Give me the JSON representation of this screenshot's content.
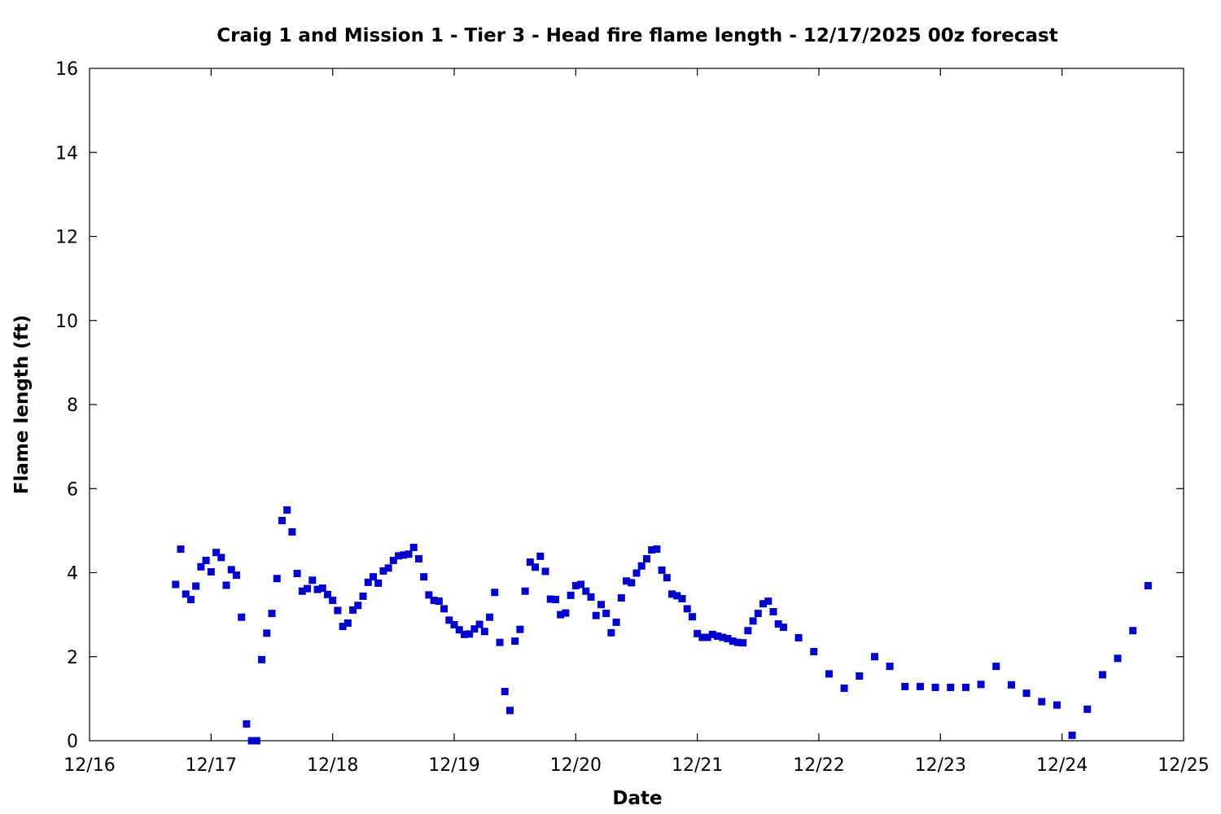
{
  "chart_data": {
    "type": "scatter",
    "title": "Craig 1 and Mission 1 - Tier 3 - Head fire flame length - 12/17/2025 00z forecast",
    "xlabel": "Date",
    "ylabel": "Flame length (ft)",
    "x_ticks": [
      "12/16",
      "12/17",
      "12/18",
      "12/19",
      "12/20",
      "12/21",
      "12/22",
      "12/23",
      "12/24",
      "12/25"
    ],
    "y_ticks": [
      "0",
      "2",
      "4",
      "6",
      "8",
      "10",
      "12",
      "14",
      "16"
    ],
    "xlim": [
      "12/16 00:00",
      "12/25 00:00"
    ],
    "ylim": [
      0,
      16
    ],
    "grid": false,
    "marker_color": "#0000cc",
    "series": [
      {
        "x": [
          "12/16 17:00",
          "12/16 18:00",
          "12/16 19:00",
          "12/16 20:00",
          "12/16 21:00",
          "12/16 22:00",
          "12/16 23:00",
          "12/17 00:00",
          "12/17 01:00",
          "12/17 02:00",
          "12/17 03:00",
          "12/17 04:00",
          "12/17 05:00",
          "12/17 06:00",
          "12/17 07:00",
          "12/17 08:00",
          "12/17 09:00",
          "12/17 10:00",
          "12/17 11:00",
          "12/17 12:00",
          "12/17 13:00",
          "12/17 14:00",
          "12/17 15:00",
          "12/17 16:00",
          "12/17 17:00",
          "12/17 18:00",
          "12/17 19:00",
          "12/17 20:00",
          "12/17 21:00",
          "12/17 22:00",
          "12/17 23:00",
          "12/18 00:00",
          "12/18 01:00",
          "12/18 02:00",
          "12/18 03:00",
          "12/18 04:00",
          "12/18 05:00",
          "12/18 06:00",
          "12/18 07:00",
          "12/18 08:00",
          "12/18 09:00",
          "12/18 10:00",
          "12/18 11:00",
          "12/18 12:00",
          "12/18 13:00",
          "12/18 14:00",
          "12/18 15:00",
          "12/18 16:00",
          "12/18 17:00",
          "12/18 18:00",
          "12/18 19:00",
          "12/18 20:00",
          "12/18 21:00",
          "12/18 22:00",
          "12/18 23:00",
          "12/19 00:00",
          "12/19 01:00",
          "12/19 02:00",
          "12/19 03:00",
          "12/19 04:00",
          "12/19 05:00",
          "12/19 06:00",
          "12/19 07:00",
          "12/19 08:00",
          "12/19 09:00",
          "12/19 10:00",
          "12/19 11:00",
          "12/19 12:00",
          "12/19 13:00",
          "12/19 14:00",
          "12/19 15:00",
          "12/19 16:00",
          "12/19 17:00",
          "12/19 18:00",
          "12/19 19:00",
          "12/19 20:00",
          "12/19 21:00",
          "12/19 22:00",
          "12/19 23:00",
          "12/20 00:00",
          "12/20 01:00",
          "12/20 02:00",
          "12/20 03:00",
          "12/20 04:00",
          "12/20 05:00",
          "12/20 06:00",
          "12/20 07:00",
          "12/20 08:00",
          "12/20 09:00",
          "12/20 10:00",
          "12/20 11:00",
          "12/20 12:00",
          "12/20 13:00",
          "12/20 14:00",
          "12/20 15:00",
          "12/20 16:00",
          "12/20 17:00",
          "12/20 18:00",
          "12/20 19:00",
          "12/20 20:00",
          "12/20 21:00",
          "12/20 22:00",
          "12/20 23:00",
          "12/21 00:00",
          "12/21 01:00",
          "12/21 02:00",
          "12/21 03:00",
          "12/21 04:00",
          "12/21 05:00",
          "12/21 06:00",
          "12/21 07:00",
          "12/21 08:00",
          "12/21 09:00",
          "12/21 10:00",
          "12/21 11:00",
          "12/21 12:00",
          "12/21 13:00",
          "12/21 14:00",
          "12/21 15:00",
          "12/21 16:00",
          "12/21 17:00",
          "12/21 20:00",
          "12/21 23:00",
          "12/22 02:00",
          "12/22 05:00",
          "12/22 08:00",
          "12/22 11:00",
          "12/22 14:00",
          "12/22 17:00",
          "12/22 20:00",
          "12/22 23:00",
          "12/23 02:00",
          "12/23 05:00",
          "12/23 08:00",
          "12/23 11:00",
          "12/23 14:00",
          "12/23 17:00",
          "12/23 20:00",
          "12/23 23:00",
          "12/24 02:00",
          "12/24 05:00",
          "12/24 08:00",
          "12/24 11:00",
          "12/24 14:00",
          "12/24 17:00"
        ],
        "y": [
          3.72,
          4.56,
          3.49,
          3.36,
          3.68,
          4.14,
          4.29,
          4.02,
          4.48,
          4.36,
          3.7,
          4.07,
          3.94,
          2.94,
          0.4,
          0.0,
          0.0,
          1.93,
          2.56,
          3.03,
          3.86,
          5.24,
          5.49,
          4.97,
          3.98,
          3.56,
          3.62,
          3.82,
          3.6,
          3.63,
          3.48,
          3.34,
          3.1,
          2.72,
          2.8,
          3.11,
          3.22,
          3.44,
          3.77,
          3.9,
          3.75,
          4.04,
          4.11,
          4.29,
          4.4,
          4.42,
          4.44,
          4.6,
          4.33,
          3.9,
          3.47,
          3.34,
          3.32,
          3.14,
          2.87,
          2.76,
          2.64,
          2.53,
          2.54,
          2.66,
          2.77,
          2.6,
          2.94,
          3.53,
          2.34,
          1.17,
          0.72,
          2.37,
          2.65,
          3.56,
          4.25,
          4.13,
          4.39,
          4.03,
          3.37,
          3.36,
          3.0,
          3.04,
          3.46,
          3.69,
          3.72,
          3.56,
          3.42,
          2.98,
          3.24,
          3.03,
          2.57,
          2.82,
          3.4,
          3.8,
          3.76,
          3.99,
          4.16,
          4.33,
          4.54,
          4.56,
          4.06,
          3.88,
          3.49,
          3.45,
          3.38,
          3.14,
          2.95,
          2.55,
          2.46,
          2.46,
          2.53,
          2.49,
          2.46,
          2.43,
          2.37,
          2.34,
          2.33,
          2.62,
          2.85,
          3.03,
          3.26,
          3.32,
          3.07,
          2.78,
          2.7,
          2.45,
          2.12,
          1.59,
          1.25,
          1.54,
          2.0,
          1.77,
          1.29,
          1.29,
          1.27,
          1.27,
          1.27,
          1.34,
          1.77,
          1.33,
          1.13,
          0.93,
          0.85,
          0.13,
          0.75,
          1.57,
          1.96,
          2.62,
          3.69
        ]
      }
    ]
  }
}
